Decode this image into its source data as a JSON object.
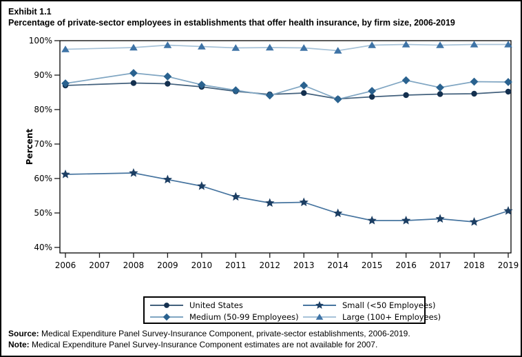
{
  "header": {
    "exhibit": "Exhibit 1.1",
    "title": "Percentage of private-sector employees in establishments that offer health insurance, by firm size, 2006-2019"
  },
  "chart_data": {
    "type": "line",
    "title": "Percentage of private-sector employees in establishments that offer health insurance, by firm size, 2006-2019",
    "xlabel": "",
    "ylabel": "Percent",
    "ylim": [
      38.4,
      100
    ],
    "yticks": [
      40,
      50,
      60,
      70,
      80,
      90,
      100
    ],
    "ytick_labels": [
      "40%",
      "50%",
      "60%",
      "70%",
      "80%",
      "90%",
      "100%"
    ],
    "x": [
      2006,
      2007,
      2008,
      2009,
      2010,
      2011,
      2012,
      2013,
      2014,
      2015,
      2016,
      2017,
      2018,
      2019
    ],
    "missing_year_note": "2007 estimates not available",
    "grid": false,
    "legend_position": "bottom",
    "series": [
      {
        "name": "United States",
        "marker": "circle",
        "marker_color": "#14304f",
        "line_color": "#42607c",
        "values": [
          87.0,
          null,
          87.7,
          87.5,
          86.6,
          85.3,
          84.4,
          84.8,
          83.1,
          83.7,
          84.2,
          84.5,
          84.6,
          85.2
        ]
      },
      {
        "name": "Medium (50-99 Employees)",
        "marker": "diamond",
        "marker_color": "#2a628f",
        "line_color": "#7fa5c2",
        "values": [
          87.6,
          null,
          90.6,
          89.6,
          87.2,
          85.6,
          84.1,
          87.0,
          83.0,
          85.4,
          88.5,
          86.4,
          88.1,
          88.0
        ]
      },
      {
        "name": "Small (<50 Employees)",
        "marker": "star",
        "marker_color": "#1c3e63",
        "line_color": "#46749f",
        "values": [
          61.2,
          null,
          61.6,
          59.7,
          57.8,
          54.7,
          52.9,
          53.1,
          49.9,
          47.8,
          47.8,
          48.3,
          47.4,
          50.6
        ]
      },
      {
        "name": "Large (100+ Employees)",
        "marker": "triangle",
        "marker_color": "#3e73a6",
        "line_color": "#a6c2d8",
        "values": [
          97.5,
          null,
          98.0,
          98.7,
          98.3,
          97.9,
          98.0,
          97.9,
          97.1,
          98.7,
          98.9,
          98.7,
          98.9,
          98.9
        ]
      }
    ]
  },
  "footer": {
    "source_label": "Source:",
    "source_text": "Medical Expenditure Panel Survey-Insurance Component, private-sector establishments, 2006-2019.",
    "note_label": "Note:",
    "note_text": "Medical Expenditure Panel Survey-Insurance Component estimates are not available for 2007."
  }
}
